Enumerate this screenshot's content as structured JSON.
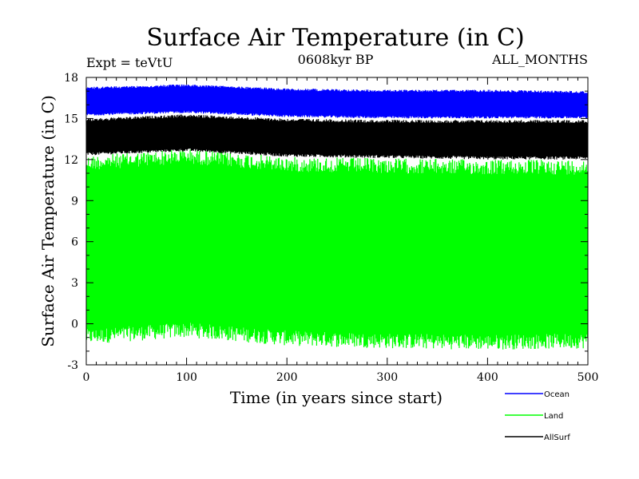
{
  "chart_data": {
    "type": "line",
    "title": "Surface Air Temperature (in C)",
    "subtitle": "0608kyr BP",
    "left_note": "Expt = teVtU",
    "right_note": "ALL_MONTHS",
    "xlabel": "Time (in years since start)",
    "ylabel": "Surface Air Temperature (in C)",
    "xlim": [
      0,
      500
    ],
    "ylim": [
      -3,
      18
    ],
    "x_ticks": [
      0,
      100,
      200,
      300,
      400,
      500
    ],
    "y_ticks": [
      -3,
      0,
      3,
      6,
      9,
      12,
      15,
      18
    ],
    "grid": false,
    "legend_position": "bottom-right, outside plot",
    "series": [
      {
        "name": "Ocean",
        "color": "#0000ff",
        "band_low": [
          15.2,
          15.4,
          15.1,
          15.0,
          15.0,
          15.0
        ],
        "band_high": [
          17.3,
          17.5,
          17.2,
          17.1,
          17.1,
          17.0
        ]
      },
      {
        "name": "Land",
        "color": "#00ff00",
        "band_low": [
          -1.5,
          -1.0,
          -1.6,
          -1.8,
          -1.9,
          -1.8
        ],
        "band_high": [
          12.3,
          12.8,
          12.2,
          12.1,
          12.0,
          12.0
        ]
      },
      {
        "name": "AllSurf",
        "color": "#000000",
        "band_low": [
          12.3,
          12.6,
          12.2,
          12.1,
          12.0,
          12.0
        ],
        "band_high": [
          15.0,
          15.3,
          15.0,
          14.9,
          14.9,
          14.9
        ]
      }
    ]
  }
}
